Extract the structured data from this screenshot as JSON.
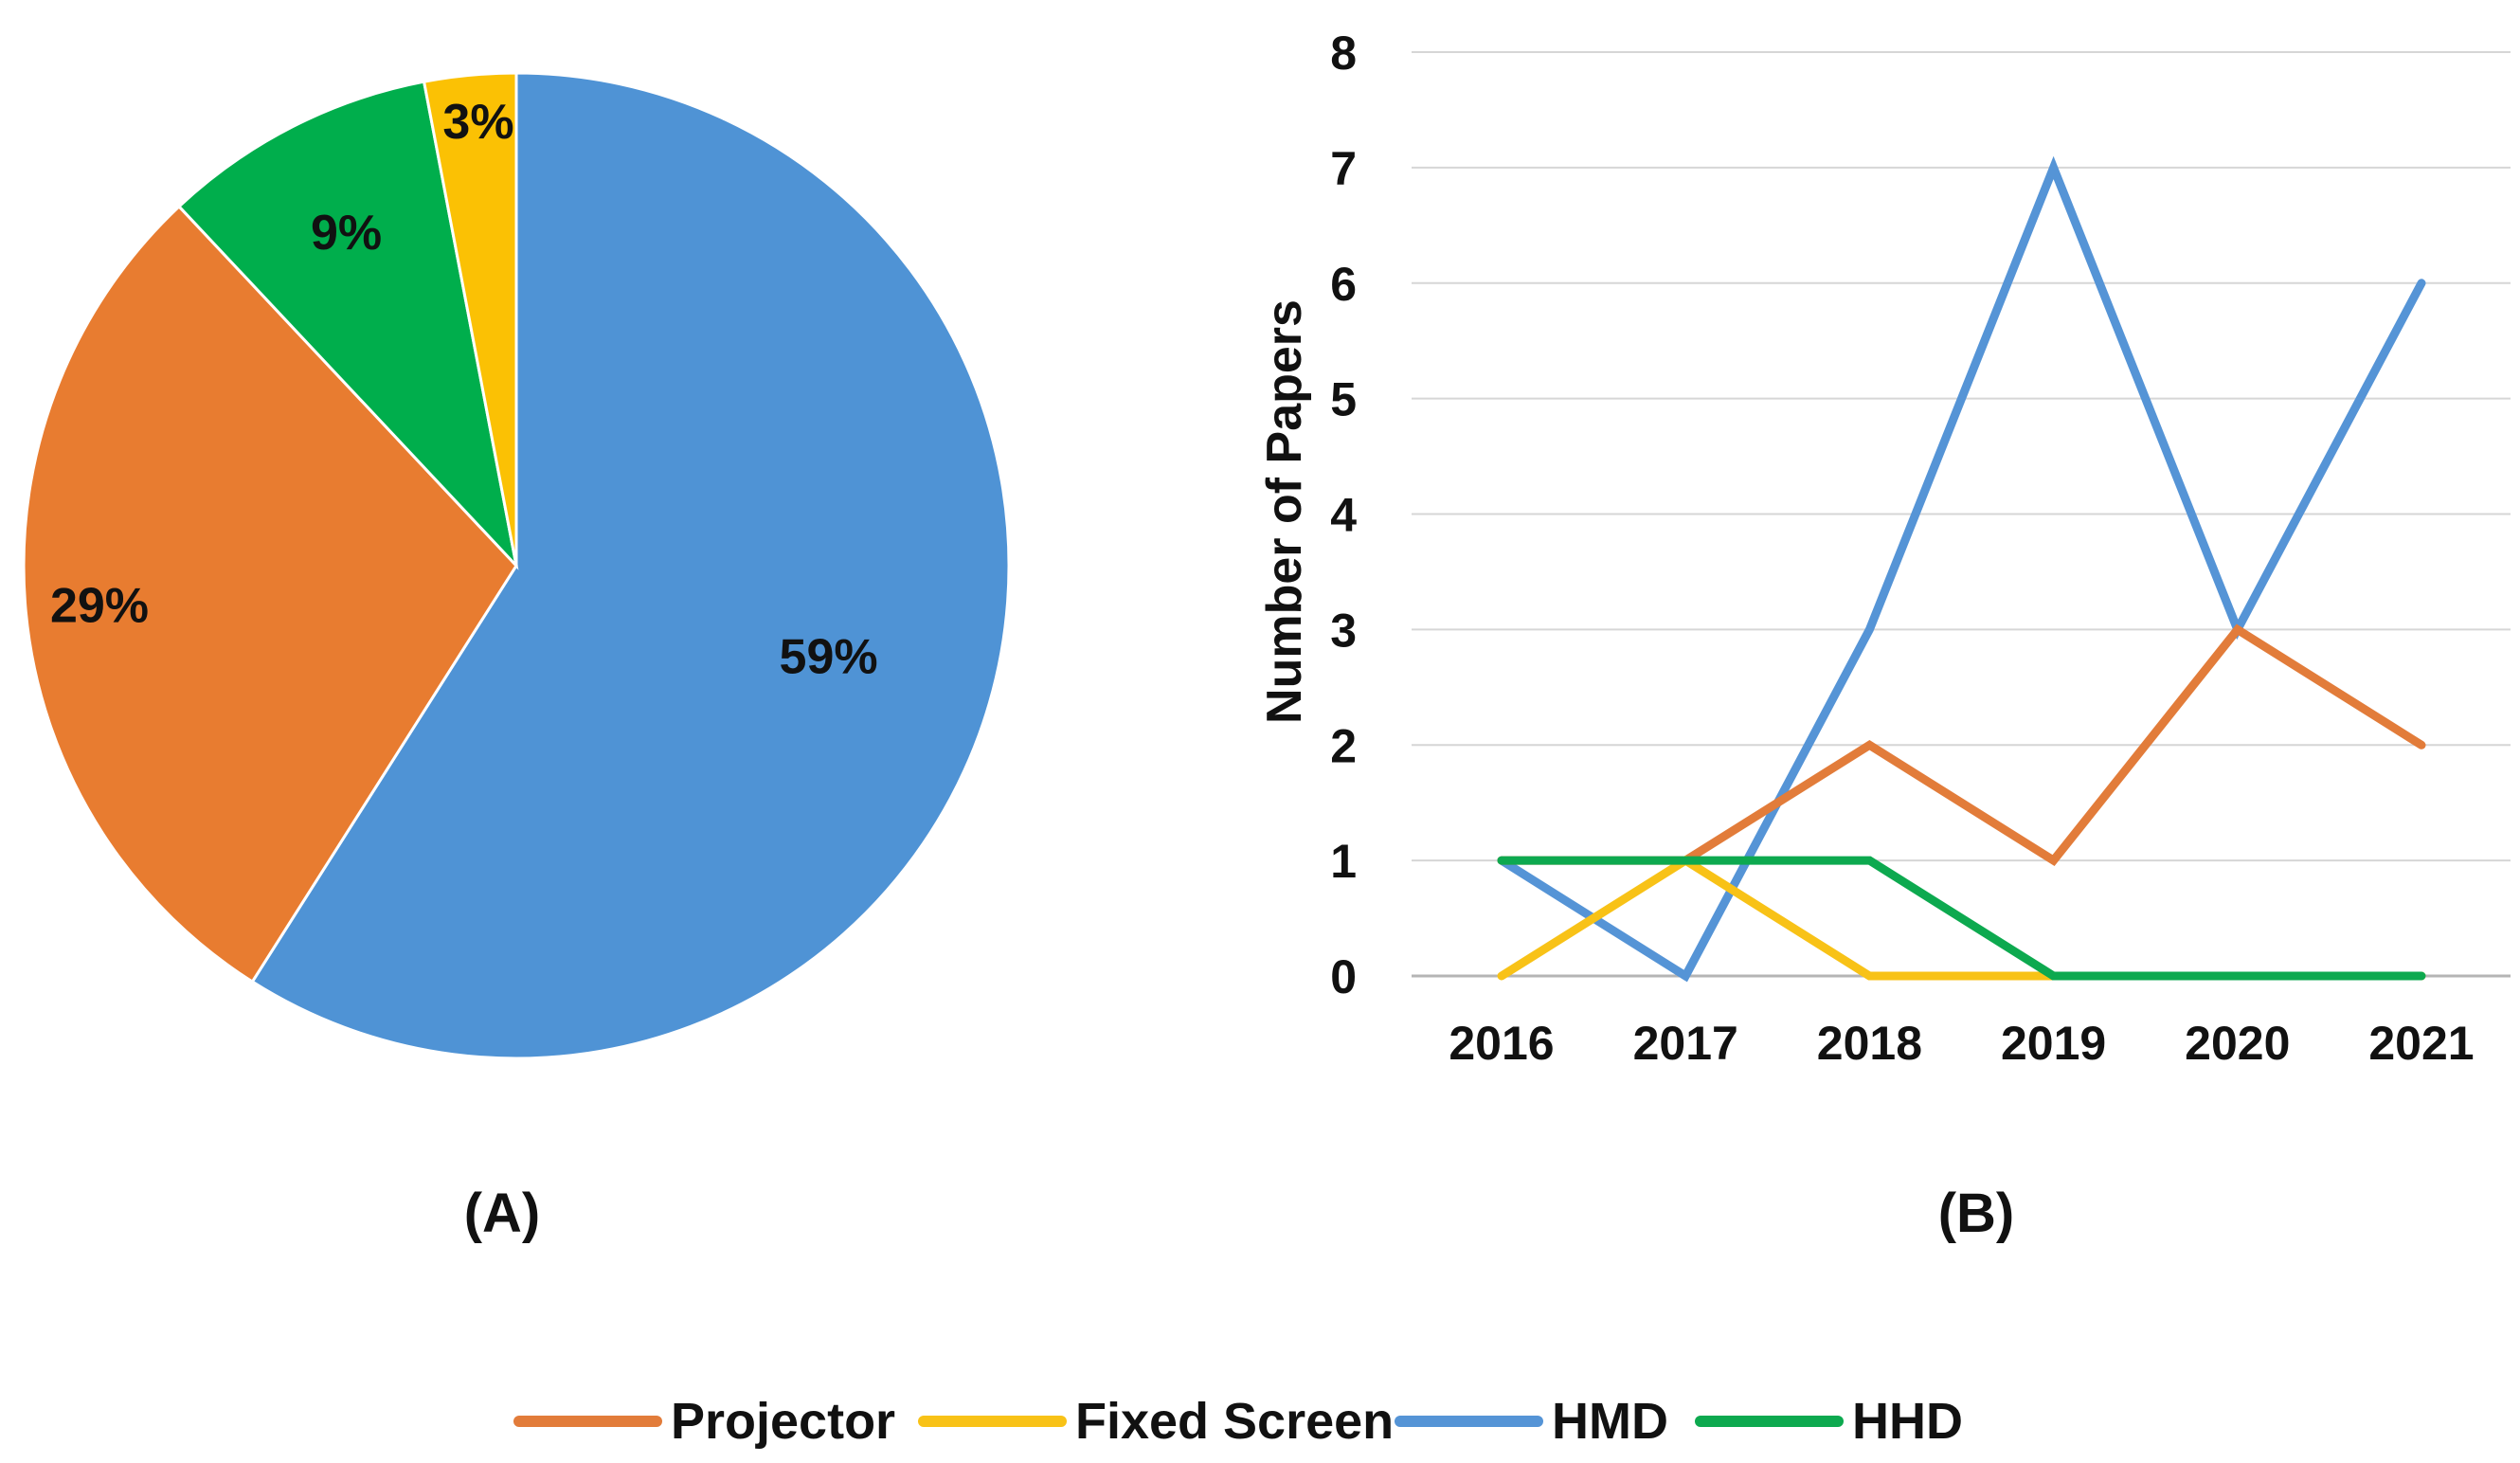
{
  "chart_data": [
    {
      "type": "pie",
      "panel_label": "(A)",
      "slices": [
        {
          "label": "HMD",
          "value": 59,
          "text": "59%",
          "color": "#4F93D5"
        },
        {
          "label": "Projector",
          "value": 29,
          "text": "29%",
          "color": "#E87C30"
        },
        {
          "label": "HHD",
          "value": 9,
          "text": "9%",
          "color": "#00AE4C"
        },
        {
          "label": "Fixed Screen",
          "value": 3,
          "text": "3%",
          "color": "#FBC104"
        }
      ]
    },
    {
      "type": "line",
      "panel_label": "(B)",
      "x": [
        "2016",
        "2017",
        "2018",
        "2019",
        "2020",
        "2021"
      ],
      "ylabel": "Number of Papers",
      "xlabel": "",
      "ylim": [
        0,
        8
      ],
      "yticks": [
        "0",
        "1",
        "2",
        "3",
        "4",
        "5",
        "6",
        "7",
        "8"
      ],
      "grid": true,
      "series": [
        {
          "name": "HMD",
          "color": "#5594D6",
          "values": [
            1,
            0,
            3,
            7,
            3,
            6
          ]
        },
        {
          "name": "Projector",
          "color": "#E27C3A",
          "values": [
            1,
            1,
            2,
            1,
            3,
            2
          ]
        },
        {
          "name": "Fixed Screen",
          "color": "#F8C217",
          "values": [
            0,
            1,
            0,
            0,
            0,
            0
          ]
        },
        {
          "name": "HHD",
          "color": "#0DA94F",
          "values": [
            1,
            1,
            1,
            0,
            0,
            0
          ]
        }
      ]
    }
  ],
  "legend": {
    "position": "bottom",
    "items": [
      {
        "label": "Projector",
        "color": "#E27C3A"
      },
      {
        "label": "Fixed Screen",
        "color": "#F8C217"
      },
      {
        "label": "HMD",
        "color": "#5594D6"
      },
      {
        "label": "HHD",
        "color": "#0DA94F"
      }
    ]
  }
}
